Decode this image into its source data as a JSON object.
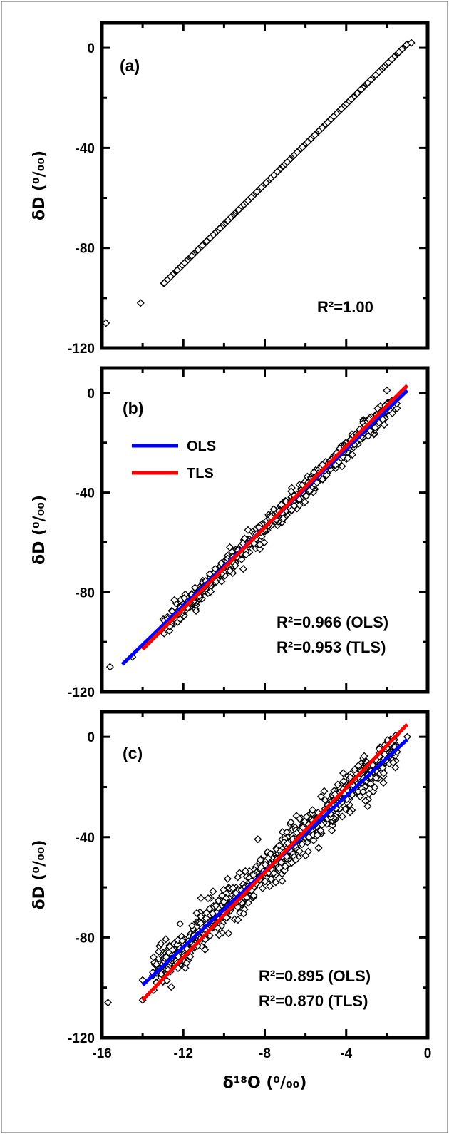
{
  "chart_data": [
    {
      "type": "scatter",
      "panel_label": "(a)",
      "ylabel": "δD (⁰/₀₀)",
      "xlabel": "",
      "xlim": [
        -16,
        0
      ],
      "ylim": [
        -120,
        10
      ],
      "yticks": [
        0,
        -40,
        -80,
        -120
      ],
      "ytick_labels": [
        "0",
        "-40",
        "-80",
        "-120"
      ],
      "xticks": [
        -16,
        -12,
        -8,
        -4,
        0
      ],
      "xtick_labels": [],
      "legend": null,
      "annotations": [
        "R²=1.00"
      ],
      "grid": false,
      "scatter_summary": {
        "x_range": [
          -13,
          -1
        ],
        "slope": 8.0,
        "intercept": 9.5,
        "n": 800,
        "noise_sd": 0
      },
      "outliers": [
        {
          "x": -15.8,
          "y": -110
        },
        {
          "x": -14.1,
          "y": -102
        },
        {
          "x": -0.8,
          "y": 2
        }
      ],
      "series": []
    },
    {
      "type": "scatter",
      "panel_label": "(b)",
      "ylabel": "δD (⁰/₀₀)",
      "xlabel": "",
      "xlim": [
        -16,
        0
      ],
      "ylim": [
        -120,
        10
      ],
      "yticks": [
        0,
        -40,
        -80,
        -120
      ],
      "ytick_labels": [
        "0",
        "-40",
        "-80",
        "-120"
      ],
      "xticks": [
        -16,
        -12,
        -8,
        -4,
        0
      ],
      "xtick_labels": [],
      "legend": {
        "placement": "top-left",
        "entries": [
          "OLS",
          "TLS"
        ]
      },
      "annotations": [
        "R²=0.966 (OLS)",
        "R²=0.953 (TLS)"
      ],
      "grid": false,
      "scatter_summary": {
        "x_range": [
          -13,
          -1.5
        ],
        "slope": 8.0,
        "intercept": 9.5,
        "n": 700,
        "noise_sd": 2.0
      },
      "outliers": [
        {
          "x": -15.6,
          "y": -110
        },
        {
          "x": -14.5,
          "y": -106
        },
        {
          "x": -2.0,
          "y": 1
        },
        {
          "x": -1.3,
          "y": 0
        }
      ],
      "series": [
        {
          "name": "OLS",
          "color": "#0000ff",
          "x": [
            -15.0,
            -1.0
          ],
          "y": [
            -109,
            1
          ]
        },
        {
          "name": "TLS",
          "color": "#ff0000",
          "x": [
            -14.0,
            -1.0
          ],
          "y": [
            -103,
            3
          ]
        }
      ]
    },
    {
      "type": "scatter",
      "panel_label": "(c)",
      "ylabel": "δD (⁰/₀₀)",
      "xlabel": "δ¹⁸O (⁰/₀₀)",
      "xlim": [
        -16,
        0
      ],
      "ylim": [
        -120,
        10
      ],
      "yticks": [
        0,
        -40,
        -80,
        -120
      ],
      "ytick_labels": [
        "0",
        "-40",
        "-80",
        "-120"
      ],
      "xticks": [
        -16,
        -12,
        -8,
        -4,
        0
      ],
      "xtick_labels": [
        "-16",
        "-12",
        "-8",
        "-4",
        "0"
      ],
      "legend": null,
      "annotations": [
        "R²=0.895 (OLS)",
        "R²=0.870 (TLS)"
      ],
      "grid": false,
      "scatter_summary": {
        "x_range": [
          -13.5,
          -1.5
        ],
        "slope": 7.6,
        "intercept": 7.5,
        "n": 800,
        "noise_sd": 4.0
      },
      "outliers": [
        {
          "x": -15.7,
          "y": -106
        },
        {
          "x": -14.0,
          "y": -105
        },
        {
          "x": -14.0,
          "y": -97
        },
        {
          "x": -1.0,
          "y": 0
        },
        {
          "x": -1.5,
          "y": -6
        }
      ],
      "series": [
        {
          "name": "OLS",
          "color": "#0000ff",
          "x": [
            -14.0,
            -1.0
          ],
          "y": [
            -99,
            -1
          ]
        },
        {
          "name": "TLS",
          "color": "#ff0000",
          "x": [
            -14.0,
            -1.0
          ],
          "y": [
            -105,
            5
          ]
        }
      ]
    }
  ]
}
